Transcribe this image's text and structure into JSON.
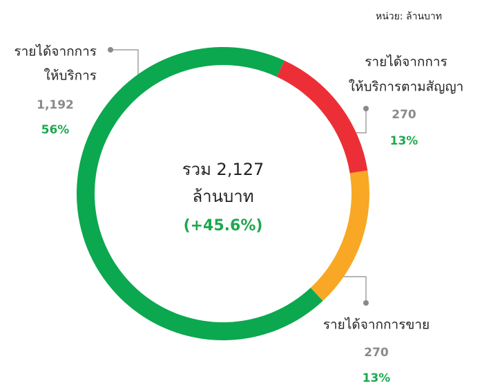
{
  "chart_data": {
    "type": "pie",
    "unit_note": "หน่วย: ล้านบาท",
    "total_label": "รวม 2,127",
    "unit": "ล้านบาท",
    "change": "(+45.6%)",
    "categories": [
      [
        "รายได้จากการ",
        "ให้บริการ"
      ],
      [
        "รายได้จากการ",
        "ให้บริการตามสัญญา"
      ],
      [
        "รายได้จากการขาย"
      ]
    ],
    "values": [
      1192,
      270,
      270
    ],
    "value_labels": [
      "1,192",
      "270",
      "270"
    ],
    "percents": [
      56,
      13,
      13
    ],
    "percent_labels": [
      "56%",
      "13%",
      "13%"
    ],
    "colors": [
      "#0ba84f",
      "#ec2f37",
      "#f8a824"
    ]
  }
}
